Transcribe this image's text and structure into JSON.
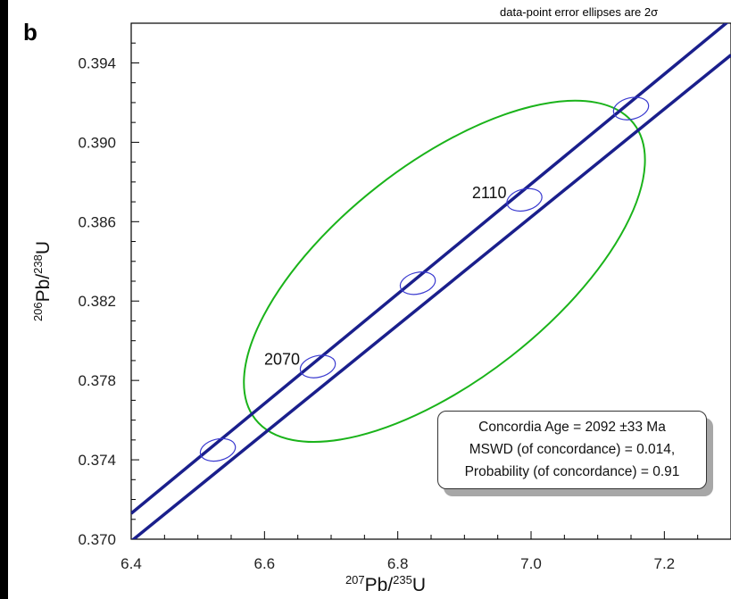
{
  "panel_letter": "b",
  "note": "data-point error ellipses are 2σ",
  "colors": {
    "concordia": "#1a1f8c",
    "data_ellipse": "#1ab31a",
    "age_ellipse": "#3a3ad0",
    "axis": "#000000",
    "shadow": "#a7a7a7"
  },
  "chart_data": {
    "type": "scatter",
    "subtype": "concordia diagram",
    "xlabel": {
      "mass": "207",
      "element": "Pb",
      "sep": "/",
      "mass2": "235",
      "element2": "U"
    },
    "ylabel": {
      "mass": "206",
      "element": "Pb",
      "sep": "/",
      "mass2": "238",
      "element2": "U"
    },
    "xlim": [
      6.4,
      7.3
    ],
    "ylim": [
      0.37,
      0.396
    ],
    "x_ticks": [
      6.4,
      6.6,
      6.8,
      7.0,
      7.2
    ],
    "x_tick_labels": [
      "6.4",
      "6.6",
      "6.8",
      "7.0",
      "7.2"
    ],
    "y_ticks": [
      0.37,
      0.374,
      0.378,
      0.382,
      0.386,
      0.39,
      0.394
    ],
    "y_tick_labels": [
      "0.370",
      "0.374",
      "0.378",
      "0.382",
      "0.386",
      "0.390",
      "0.394"
    ],
    "grid": false,
    "concordia_band": {
      "upper": [
        [
          6.4,
          0.3713
        ],
        [
          7.3,
          0.3962
        ]
      ],
      "lower": [
        [
          6.4,
          0.3699
        ],
        [
          7.3,
          0.3944
        ]
      ]
    },
    "age_markers": [
      {
        "label": "",
        "x": 6.53,
        "y": 0.3745
      },
      {
        "label": "2070",
        "x": 6.68,
        "y": 0.3787
      },
      {
        "label": "",
        "x": 6.83,
        "y": 0.3829
      },
      {
        "label": "2110",
        "x": 6.99,
        "y": 0.3871
      },
      {
        "label": "",
        "x": 7.15,
        "y": 0.3917
      }
    ],
    "data_ellipse": {
      "cx": 6.87,
      "cy": 0.3835,
      "rx": 0.3,
      "ry": 0.0062,
      "rotation_deg": -38
    },
    "result": {
      "line1": "Concordia Age = 2092 ±33 Ma",
      "line2": "MSWD (of concordance) = 0.014,",
      "line3": "Probability (of concordance) = 0.91"
    }
  }
}
